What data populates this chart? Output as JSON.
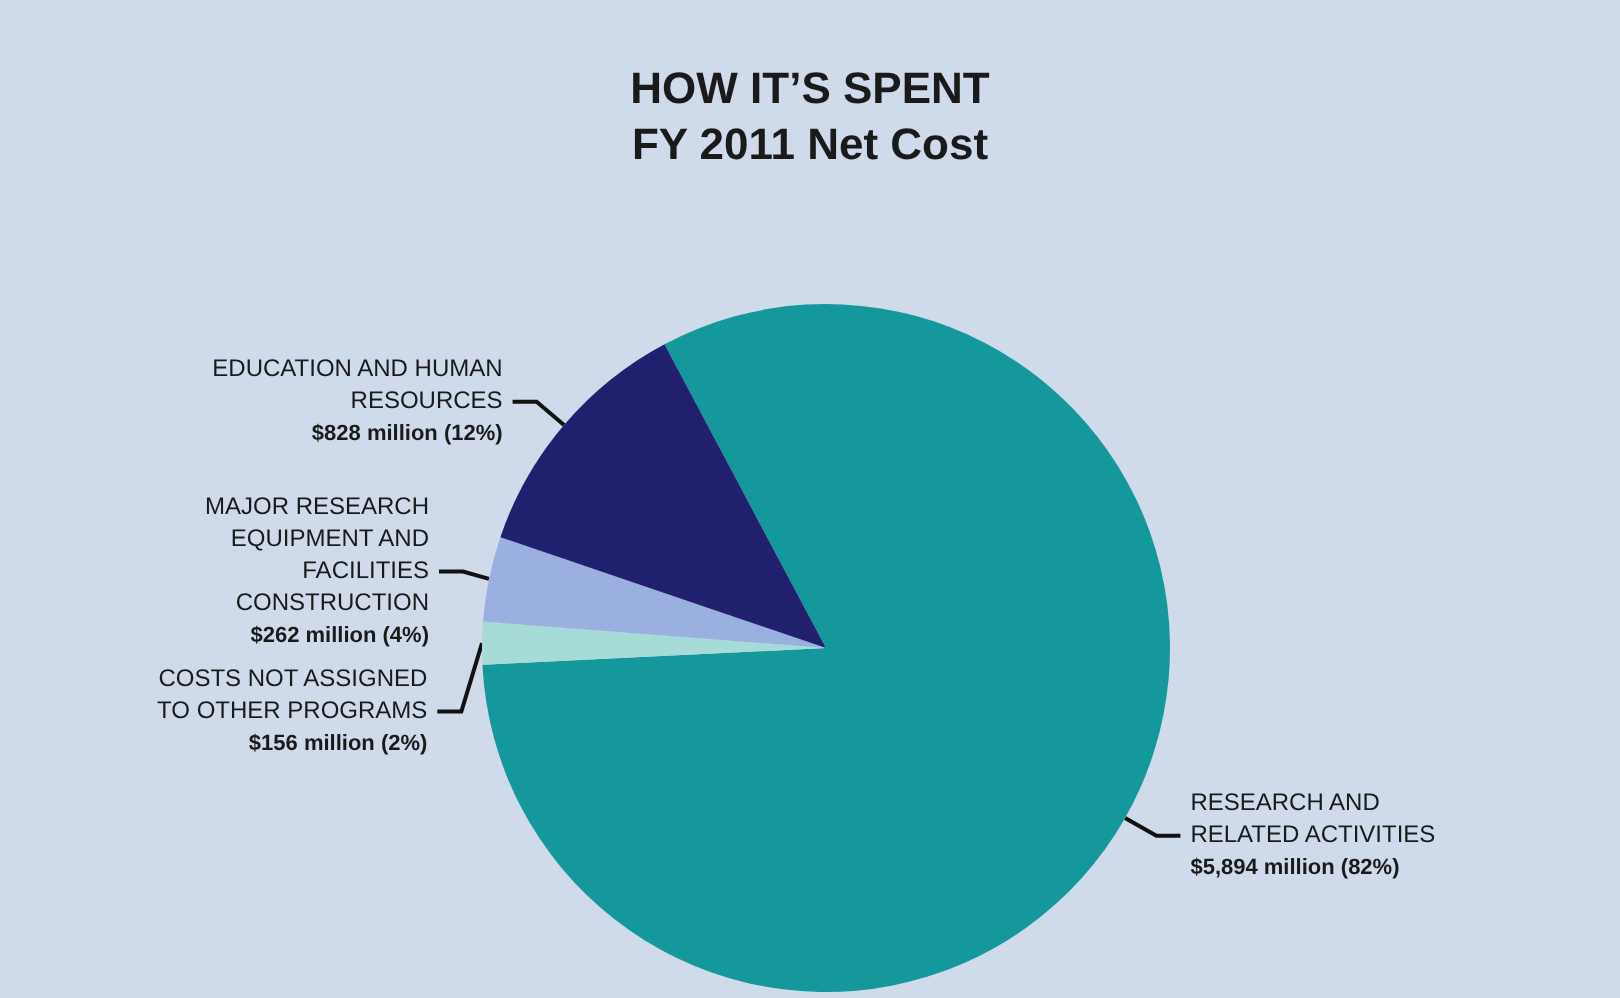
{
  "chart_data": {
    "type": "pie",
    "title": "HOW IT’S SPENT",
    "subtitle": "FY 2011 Net Cost",
    "categories": [
      "RESEARCH AND RELATED ACTIVITIES",
      "COSTS NOT ASSIGNED TO OTHER PROGRAMS",
      "MAJOR RESEARCH EQUIPMENT AND FACILITIES CONSTRUCTION",
      "EDUCATION AND HUMAN RESOURCES"
    ],
    "values": [
      82,
      2,
      4,
      12
    ],
    "value_labels": [
      "$5,894 million (82%)",
      "$156 million (2%)",
      "$262 million (4%)",
      "$828 million (12%)"
    ],
    "colors": [
      "#14989c",
      "#a6dbd8",
      "#9ab0e0",
      "#20206e"
    ],
    "legend": false
  }
}
